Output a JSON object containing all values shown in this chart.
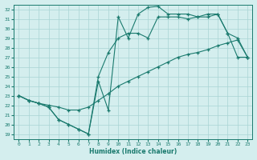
{
  "xlabel": "Humidex (Indice chaleur)",
  "background_color": "#d4eeee",
  "grid_color": "#a8d4d4",
  "line_color": "#1a7a6e",
  "xlim": [
    -0.5,
    23.5
  ],
  "ylim": [
    18.5,
    32.5
  ],
  "yticks": [
    19,
    20,
    21,
    22,
    23,
    24,
    25,
    26,
    27,
    28,
    29,
    30,
    31,
    32
  ],
  "xticks": [
    0,
    1,
    2,
    3,
    4,
    5,
    6,
    7,
    8,
    9,
    10,
    11,
    12,
    13,
    14,
    15,
    16,
    17,
    18,
    19,
    20,
    21,
    22,
    23
  ],
  "line1_x": [
    0,
    1,
    2,
    3,
    4,
    5,
    6,
    7,
    8,
    9,
    10,
    11,
    12,
    13,
    14,
    15,
    16,
    17,
    18,
    19,
    20,
    21,
    22,
    23
  ],
  "line1_y": [
    23.0,
    22.5,
    22.2,
    21.8,
    20.5,
    20.0,
    19.5,
    19.0,
    24.5,
    21.5,
    31.2,
    29.0,
    31.5,
    32.2,
    32.3,
    31.5,
    31.5,
    31.5,
    31.2,
    31.5,
    31.5,
    29.5,
    29.0,
    27.0
  ],
  "line2_x": [
    0,
    1,
    2,
    3,
    4,
    5,
    6,
    7,
    8,
    9,
    10,
    11,
    12,
    13,
    14,
    15,
    16,
    17,
    18,
    19,
    20,
    21,
    22,
    23
  ],
  "line2_y": [
    23.0,
    22.5,
    22.2,
    21.8,
    20.5,
    20.0,
    19.5,
    19.0,
    25.0,
    27.5,
    29.0,
    29.5,
    29.5,
    29.0,
    31.2,
    31.2,
    31.2,
    31.0,
    31.2,
    31.2,
    31.5,
    29.5,
    27.0,
    27.0
  ],
  "line3_x": [
    0,
    1,
    2,
    3,
    4,
    5,
    6,
    7,
    8,
    9,
    10,
    11,
    12,
    13,
    14,
    15,
    16,
    17,
    18,
    19,
    20,
    21,
    22,
    23
  ],
  "line3_y": [
    23.0,
    22.5,
    22.2,
    22.0,
    21.8,
    21.5,
    21.5,
    21.8,
    22.5,
    23.2,
    24.0,
    24.5,
    25.0,
    25.5,
    26.0,
    26.5,
    27.0,
    27.3,
    27.5,
    27.8,
    28.2,
    28.5,
    28.8,
    27.0
  ]
}
